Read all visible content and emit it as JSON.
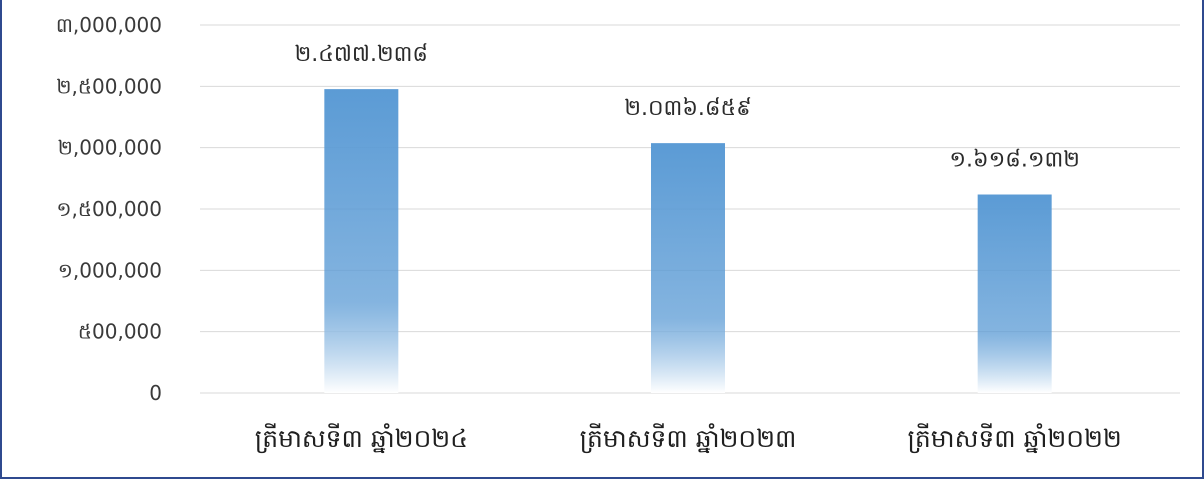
{
  "chart_data": {
    "type": "bar",
    "title": "",
    "xlabel": "",
    "ylabel": "",
    "categories": [
      "ត្រីមាសទី៣ ឆ្នាំ២០២៤",
      "ត្រីមាសទី៣ ឆ្នាំ២០២៣",
      "ត្រីមាសទី៣ ឆ្នាំ២០២២"
    ],
    "values": [
      2477238,
      2036859,
      1618132
    ],
    "data_labels": [
      "២.៤៧៧.២៣៨",
      "២.០៣៦.៨៥៩",
      "១.៦១៨.១៣២"
    ],
    "ylim": [
      0,
      3000000
    ],
    "y_ticks": [
      0,
      500000,
      1000000,
      1500000,
      2000000,
      2500000,
      3000000
    ],
    "y_tick_labels": [
      "0",
      "៥00,000",
      "១,000,000",
      "១,៥00,000",
      "២,000,000",
      "២,៥00,000",
      "៣,000,000"
    ],
    "grid": true,
    "legend": "none",
    "bar_color": "#5b9bd5",
    "bar_fade_color": "#ffffff"
  }
}
